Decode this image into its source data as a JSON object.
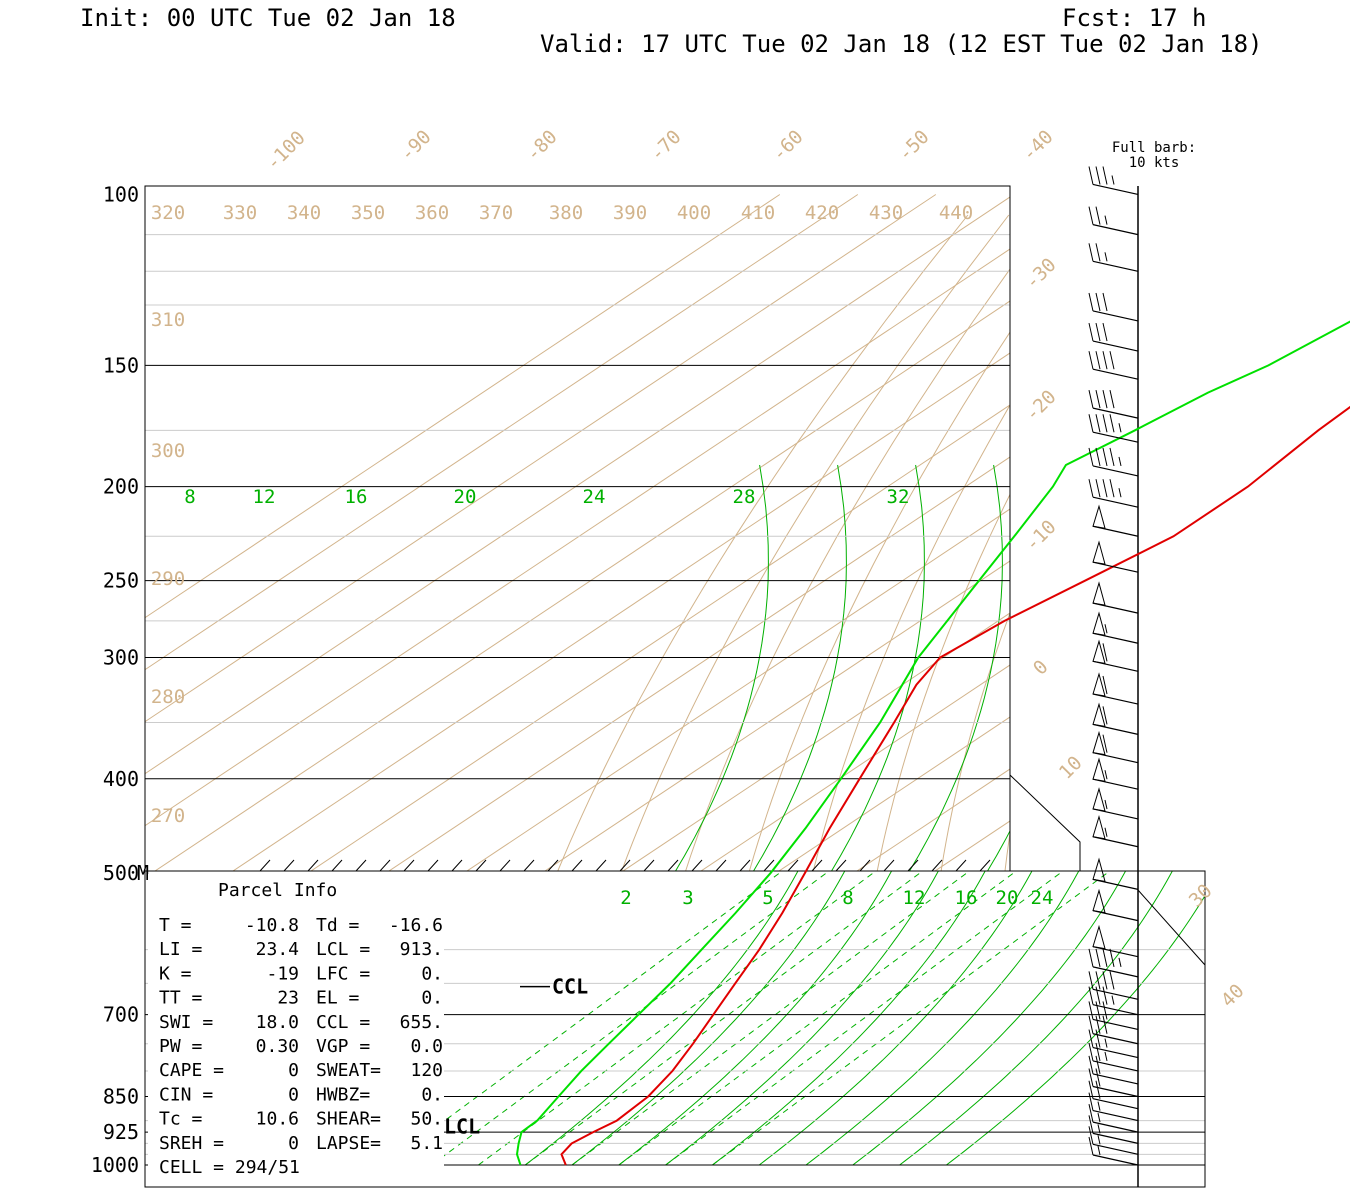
{
  "header": {
    "init": "Init: 00 UTC Tue 02 Jan 18",
    "fcst": "Fcst:   17 h",
    "valid": "Valid: 17 UTC Tue 02 Jan 18 (12 EST Tue 02 Jan 18)"
  },
  "barb_legend": {
    "line1": "Full barb:",
    "line2": "10 kts"
  },
  "colors": {
    "temperature": "#e00000",
    "dewpoint": "#00e000",
    "isotherm": "#d2b48c",
    "mixing_ratio": "#00b000",
    "isobar": "#000000"
  },
  "chart_data": {
    "type": "line",
    "title": "",
    "y_scale": "log-pressure",
    "ylim": [
      1000,
      100
    ],
    "pressure_ticks": [
      "100",
      "150",
      "200",
      "250",
      "300",
      "400",
      "500",
      "700",
      "850",
      "925",
      "1000"
    ],
    "mid_marker": "M",
    "isotherm_labels": [
      "-100",
      "-90",
      "-80",
      "-70",
      "-60",
      "-50",
      "-40",
      "-30",
      "-20",
      "-10",
      "0",
      "10",
      "30",
      "40"
    ],
    "theta_labels": [
      "320",
      "330",
      "340",
      "350",
      "360",
      "370",
      "380",
      "390",
      "400",
      "410",
      "420",
      "430",
      "440",
      "310",
      "300",
      "290",
      "280",
      "270"
    ],
    "mixing_ratio_labels_upper": [
      "8",
      "12",
      "16",
      "20",
      "24",
      "28",
      "32"
    ],
    "mixing_ratio_labels_lower": [
      "2",
      "3",
      "5",
      "8",
      "12",
      "16",
      "20",
      "24"
    ],
    "series": [
      {
        "name": "temperature",
        "pressure": [
          1000,
          975,
          950,
          925,
          900,
          850,
          800,
          750,
          700,
          650,
          600,
          550,
          500,
          450,
          400,
          350,
          320,
          300,
          275,
          250,
          225,
          200,
          175,
          150,
          140,
          125,
          110,
          100
        ],
        "values": [
          -10.8,
          -13.4,
          -14.2,
          -13.6,
          -12.8,
          -13.4,
          -15.2,
          -17.8,
          -20.8,
          -24.0,
          -27.4,
          -31.5,
          -36.3,
          -41.7,
          -47.4,
          -53.8,
          -58.2,
          -60.4,
          -59.2,
          -56.6,
          -53.8,
          -53.8,
          -55.6,
          -56.7,
          -56.8,
          -58.8,
          -60.3,
          -60.7
        ]
      },
      {
        "name": "dewpoint",
        "pressure": [
          1000,
          975,
          950,
          925,
          900,
          850,
          800,
          750,
          700,
          650,
          600,
          550,
          500,
          450,
          400,
          350,
          300,
          250,
          225,
          200,
          190,
          175,
          160,
          150,
          125,
          110,
          100
        ],
        "values": [
          -16.6,
          -19.1,
          -21.0,
          -22.8,
          -23.0,
          -24.9,
          -26.9,
          -28.6,
          -30.4,
          -32.3,
          -34.8,
          -37.5,
          -40.7,
          -44.8,
          -49.8,
          -55.6,
          -63.2,
          -70.2,
          -74.2,
          -78.8,
          -81.3,
          -79.1,
          -77.0,
          -74.5,
          -70.9,
          -69.3,
          -69.4
        ]
      }
    ],
    "winds_kts": [
      {
        "p": 100,
        "speed": 35
      },
      {
        "p": 110,
        "speed": 25
      },
      {
        "p": 120,
        "speed": 25
      },
      {
        "p": 135,
        "speed": 30
      },
      {
        "p": 145,
        "speed": 30
      },
      {
        "p": 155,
        "speed": 40
      },
      {
        "p": 170,
        "speed": 40
      },
      {
        "p": 180,
        "speed": 45
      },
      {
        "p": 195,
        "speed": 45
      },
      {
        "p": 210,
        "speed": 45
      },
      {
        "p": 225,
        "speed": 50
      },
      {
        "p": 245,
        "speed": 50
      },
      {
        "p": 270,
        "speed": 50
      },
      {
        "p": 290,
        "speed": 55
      },
      {
        "p": 310,
        "speed": 60
      },
      {
        "p": 335,
        "speed": 60
      },
      {
        "p": 360,
        "speed": 60
      },
      {
        "p": 385,
        "speed": 60
      },
      {
        "p": 410,
        "speed": 55
      },
      {
        "p": 440,
        "speed": 55
      },
      {
        "p": 470,
        "speed": 55
      },
      {
        "p": 520,
        "speed": 50
      },
      {
        "p": 560,
        "speed": 50
      },
      {
        "p": 610,
        "speed": 50
      },
      {
        "p": 640,
        "speed": 45
      },
      {
        "p": 675,
        "speed": 40
      },
      {
        "p": 700,
        "speed": 35
      },
      {
        "p": 725,
        "speed": 30
      },
      {
        "p": 750,
        "speed": 30
      },
      {
        "p": 775,
        "speed": 25
      },
      {
        "p": 800,
        "speed": 25
      },
      {
        "p": 825,
        "speed": 20
      },
      {
        "p": 850,
        "speed": 20
      },
      {
        "p": 875,
        "speed": 20
      },
      {
        "p": 900,
        "speed": 15
      },
      {
        "p": 925,
        "speed": 15
      },
      {
        "p": 950,
        "speed": 15
      },
      {
        "p": 975,
        "speed": 15
      },
      {
        "p": 1000,
        "speed": 15
      }
    ],
    "level_markers": [
      {
        "label": "CCL",
        "p": 655
      },
      {
        "label": "LCL",
        "p": 913
      }
    ]
  },
  "parcel_info": {
    "title": "Parcel Info",
    "rows": [
      [
        "T  =",
        "-10.8",
        "Td =",
        "-16.6"
      ],
      [
        "LI =",
        "23.4",
        "LCL =",
        "913."
      ],
      [
        "K  =",
        "-19",
        "LFC =",
        "0."
      ],
      [
        "TT =",
        "23",
        "EL  =",
        "0."
      ],
      [
        "SWI =",
        "18.0",
        "CCL =",
        "655."
      ],
      [
        "PW =",
        "0.30",
        "VGP =",
        "0.0"
      ],
      [
        "CAPE =",
        "0",
        "SWEAT=",
        "120"
      ],
      [
        "CIN =",
        "0",
        "HWBZ=",
        "0."
      ],
      [
        "Tc =",
        "10.6",
        "SHEAR=",
        "50."
      ],
      [
        "SREH =",
        "0",
        "LAPSE=",
        "5.1"
      ],
      [
        "CELL = 294/51",
        "",
        "",
        ""
      ]
    ]
  }
}
